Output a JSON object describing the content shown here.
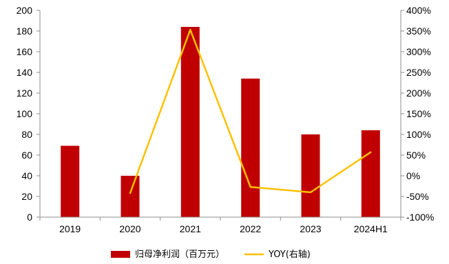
{
  "chart_data": {
    "type": "bar",
    "categories": [
      "2019",
      "2020",
      "2021",
      "2022",
      "2023",
      "2024H1"
    ],
    "series": [
      {
        "name": "归母净利润（百万元）",
        "type": "bar",
        "axis": "left",
        "color": "#C00000",
        "values": [
          69,
          40,
          184,
          134,
          80,
          84
        ]
      },
      {
        "name": "YOY(右轴)",
        "type": "line",
        "axis": "right",
        "color": "#FFC000",
        "values": [
          null,
          -0.42,
          3.53,
          -0.27,
          -0.4,
          0.57
        ]
      }
    ],
    "y_left": {
      "min": 0,
      "max": 200,
      "ticks": [
        0,
        20,
        40,
        60,
        80,
        100,
        120,
        140,
        160,
        180,
        200
      ],
      "tick_labels": [
        "0",
        "20",
        "40",
        "60",
        "80",
        "100",
        "120",
        "140",
        "160",
        "180",
        "200"
      ]
    },
    "y_right": {
      "min": -1,
      "max": 4,
      "ticks": [
        -1,
        -0.5,
        0,
        0.5,
        1,
        1.5,
        2,
        2.5,
        3,
        3.5,
        4
      ],
      "tick_labels": [
        "-100%",
        "-50%",
        "0%",
        "50%",
        "100%",
        "150%",
        "200%",
        "250%",
        "300%",
        "350%",
        "400%"
      ]
    },
    "grid": false,
    "legend_position": "bottom",
    "legend": [
      {
        "label": "归母净利润（百万元）",
        "kind": "bar",
        "color": "#C00000"
      },
      {
        "label": "YOY(右轴)",
        "kind": "line",
        "color": "#FFC000"
      }
    ]
  }
}
